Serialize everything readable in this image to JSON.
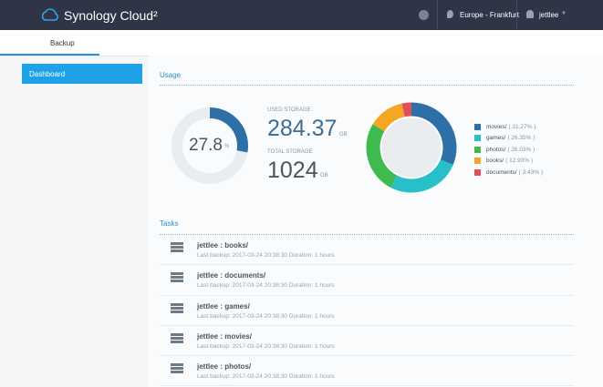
{
  "header": {
    "logo": "Synology Cloud²",
    "location": "Europe - Frankfurt",
    "user": "jettlee"
  },
  "tabs": [
    "Backup"
  ],
  "sidebar": [
    "Dashboard"
  ],
  "usage": {
    "title": "Usage",
    "percent": 27.8,
    "percent_unit": "%",
    "gauge_color": "#2f6fa8",
    "used_label": "USED STORAGE",
    "used": 284.37,
    "used_unit": "GB",
    "total_label": "TOTAL STORAGE",
    "total": 1024,
    "total_unit": "GB",
    "segments": [
      {
        "name": "movies/",
        "value": 31.27,
        "value_label": "( 31.27% )",
        "color": "#2f6fa8"
      },
      {
        "name": "games/",
        "value": 26.35,
        "value_label": "( 26.35% )",
        "color": "#27c0c8"
      },
      {
        "name": "photos/",
        "value": 26.03,
        "value_label": "( 26.03% )",
        "color": "#3dbb4f"
      },
      {
        "name": "books/",
        "value": 12.93,
        "value_label": "( 12.93% )",
        "color": "#f5a623"
      },
      {
        "name": "documents/",
        "value": 3.43,
        "value_label": "( 3.43% )",
        "color": "#e0505a"
      }
    ]
  },
  "tasks": {
    "title": "Tasks",
    "items": [
      {
        "name": "jettlee : books/",
        "detail": "Last backup: 2017-03-24 20:38:30 Duration: 1 hours"
      },
      {
        "name": "jettlee : documents/",
        "detail": "Last backup: 2017-03-24 20:38:30 Duration: 1 hours"
      },
      {
        "name": "jettlee : games/",
        "detail": "Last backup: 2017-03-24 20:38:30 Duration: 1 hours"
      },
      {
        "name": "jettlee : movies/",
        "detail": "Last backup: 2017-03-24 20:38:30 Duration: 1 hours"
      },
      {
        "name": "jettlee : photos/",
        "detail": "Last backup: 2017-03-24 20:38:30 Duration: 1 hours"
      }
    ]
  }
}
